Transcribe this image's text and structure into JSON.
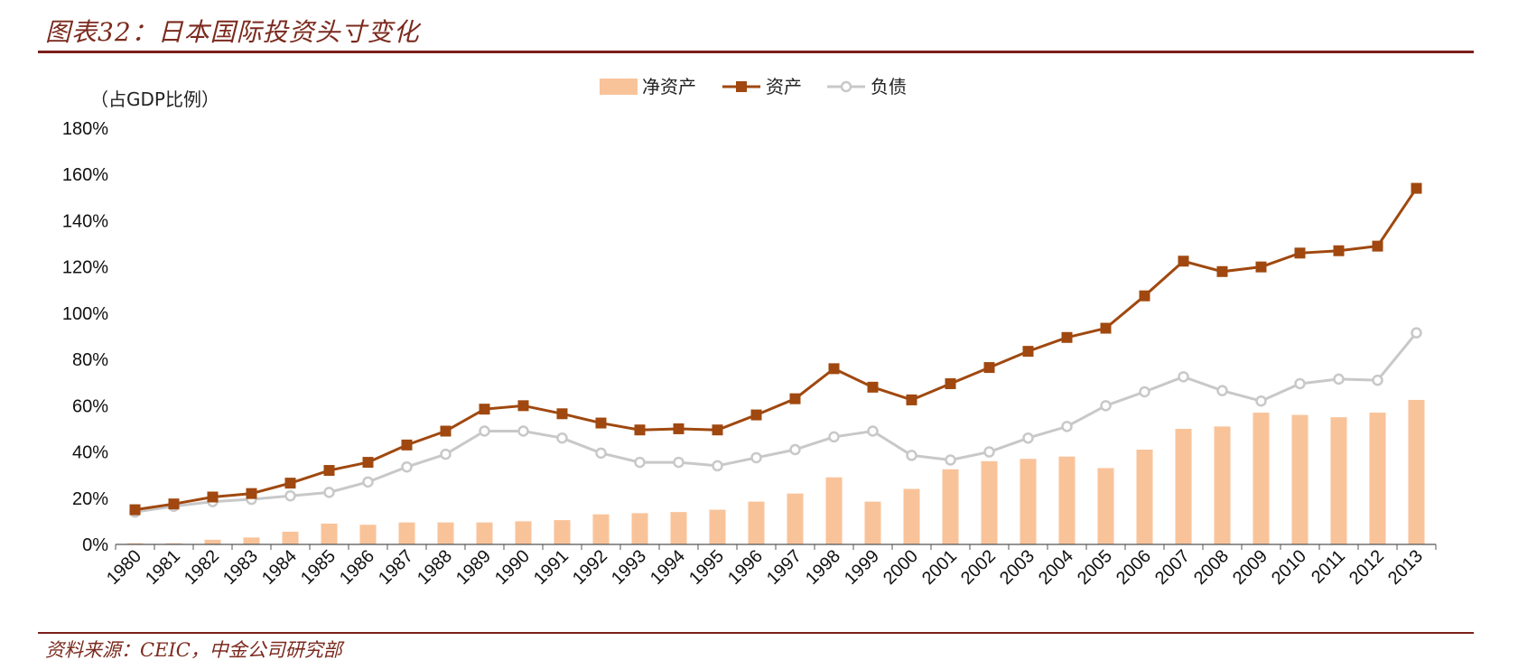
{
  "header": {
    "title": "图表32：日本国际投资头寸变化"
  },
  "footer": {
    "source": "资料来源：CEIC，中金公司研究部"
  },
  "chart_data": {
    "type": "bar+line",
    "unit_label": "（占GDP比例）",
    "categories": [
      "1980",
      "1981",
      "1982",
      "1983",
      "1984",
      "1985",
      "1986",
      "1987",
      "1988",
      "1989",
      "1990",
      "1991",
      "1992",
      "1993",
      "1994",
      "1995",
      "1996",
      "1997",
      "1998",
      "1999",
      "2000",
      "2001",
      "2002",
      "2003",
      "2004",
      "2005",
      "2006",
      "2007",
      "2008",
      "2009",
      "2010",
      "2011",
      "2012",
      "2013"
    ],
    "series": [
      {
        "name": "净资产",
        "type": "bar",
        "color": "#f9c39a",
        "values": [
          0.5,
          0.5,
          2,
          3,
          5.5,
          9,
          8.5,
          9.5,
          9.5,
          9.5,
          10,
          10.5,
          13,
          13.5,
          14,
          15,
          18.5,
          22,
          29,
          18.5,
          24,
          32.5,
          36,
          37,
          38,
          33,
          41,
          50,
          51,
          57,
          56,
          55,
          57,
          62.5
        ]
      },
      {
        "name": "资产",
        "type": "line",
        "color": "#a0480f",
        "marker": "square",
        "values": [
          15,
          17.5,
          20.5,
          22,
          26.5,
          32,
          35.5,
          43,
          49,
          58.5,
          60,
          56.5,
          52.5,
          49.5,
          50,
          49.5,
          56,
          63,
          76,
          68,
          62.5,
          69.5,
          76.5,
          83.5,
          89.5,
          93.5,
          107.5,
          122.5,
          118,
          120,
          126,
          127,
          129,
          154
        ]
      },
      {
        "name": "负债",
        "type": "line",
        "color": "#c8c8c8",
        "marker": "diamond",
        "values": [
          14,
          16.5,
          18.5,
          19.5,
          21,
          22.5,
          27,
          33.5,
          39,
          49,
          49,
          46,
          39.5,
          35.5,
          35.5,
          34,
          37.5,
          41,
          46.5,
          49,
          38.5,
          36.5,
          40,
          46,
          51,
          60,
          66,
          72.5,
          66.5,
          62,
          69.5,
          71.5,
          71,
          91.5
        ]
      }
    ],
    "y_ticks": [
      "0%",
      "20%",
      "40%",
      "60%",
      "80%",
      "100%",
      "120%",
      "140%",
      "160%",
      "180%"
    ],
    "ylim": [
      0,
      180
    ]
  }
}
